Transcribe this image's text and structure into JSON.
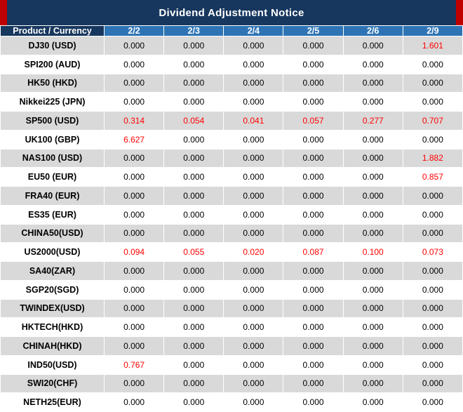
{
  "title": "Dividend Adjustment Notice",
  "colors": {
    "title_bg": "#17375E",
    "title_accent": "#C00000",
    "product_header_bg": "#17375E",
    "date_header_bg": "#2E74B5",
    "row_alt_bg": "#D9D9D9",
    "highlight_text": "#FF0000",
    "header_text": "#FFFFFF",
    "body_text": "#000000",
    "grid_line": "#FFFFFF"
  },
  "chart_data": {
    "type": "table",
    "title": "Dividend Adjustment Notice",
    "columns": [
      "Product / Currency",
      "2/2",
      "2/3",
      "2/4",
      "2/5",
      "2/6",
      "2/9"
    ],
    "highlight_meaning": "non-zero dividend adjustment shown in red",
    "rows": [
      {
        "product": "DJ30 (USD)",
        "values": [
          "0.000",
          "0.000",
          "0.000",
          "0.000",
          "0.000",
          "1.601"
        ],
        "highlighted": [
          5
        ]
      },
      {
        "product": "SPI200 (AUD)",
        "values": [
          "0.000",
          "0.000",
          "0.000",
          "0.000",
          "0.000",
          "0.000"
        ],
        "highlighted": []
      },
      {
        "product": "HK50 (HKD)",
        "values": [
          "0.000",
          "0.000",
          "0.000",
          "0.000",
          "0.000",
          "0.000"
        ],
        "highlighted": []
      },
      {
        "product": "Nikkei225 (JPN)",
        "values": [
          "0.000",
          "0.000",
          "0.000",
          "0.000",
          "0.000",
          "0.000"
        ],
        "highlighted": []
      },
      {
        "product": "SP500 (USD)",
        "values": [
          "0.314",
          "0.054",
          "0.041",
          "0.057",
          "0.277",
          "0.707"
        ],
        "highlighted": [
          0,
          1,
          2,
          3,
          4,
          5
        ]
      },
      {
        "product": "UK100 (GBP)",
        "values": [
          "6.627",
          "0.000",
          "0.000",
          "0.000",
          "0.000",
          "0.000"
        ],
        "highlighted": [
          0
        ]
      },
      {
        "product": "NAS100 (USD)",
        "values": [
          "0.000",
          "0.000",
          "0.000",
          "0.000",
          "0.000",
          "1.882"
        ],
        "highlighted": [
          5
        ]
      },
      {
        "product": "EU50 (EUR)",
        "values": [
          "0.000",
          "0.000",
          "0.000",
          "0.000",
          "0.000",
          "0.857"
        ],
        "highlighted": [
          5
        ]
      },
      {
        "product": "FRA40 (EUR)",
        "values": [
          "0.000",
          "0.000",
          "0.000",
          "0.000",
          "0.000",
          "0.000"
        ],
        "highlighted": []
      },
      {
        "product": "ES35 (EUR)",
        "values": [
          "0.000",
          "0.000",
          "0.000",
          "0.000",
          "0.000",
          "0.000"
        ],
        "highlighted": []
      },
      {
        "product": "CHINA50(USD)",
        "values": [
          "0.000",
          "0.000",
          "0.000",
          "0.000",
          "0.000",
          "0.000"
        ],
        "highlighted": []
      },
      {
        "product": "US2000(USD)",
        "values": [
          "0.094",
          "0.055",
          "0.020",
          "0.087",
          "0.100",
          "0.073"
        ],
        "highlighted": [
          0,
          1,
          2,
          3,
          4,
          5
        ]
      },
      {
        "product": "SA40(ZAR)",
        "values": [
          "0.000",
          "0.000",
          "0.000",
          "0.000",
          "0.000",
          "0.000"
        ],
        "highlighted": []
      },
      {
        "product": "SGP20(SGD)",
        "values": [
          "0.000",
          "0.000",
          "0.000",
          "0.000",
          "0.000",
          "0.000"
        ],
        "highlighted": []
      },
      {
        "product": "TWINDEX(USD)",
        "values": [
          "0.000",
          "0.000",
          "0.000",
          "0.000",
          "0.000",
          "0.000"
        ],
        "highlighted": []
      },
      {
        "product": "HKTECH(HKD)",
        "values": [
          "0.000",
          "0.000",
          "0.000",
          "0.000",
          "0.000",
          "0.000"
        ],
        "highlighted": []
      },
      {
        "product": "CHINAH(HKD)",
        "values": [
          "0.000",
          "0.000",
          "0.000",
          "0.000",
          "0.000",
          "0.000"
        ],
        "highlighted": []
      },
      {
        "product": "IND50(USD)",
        "values": [
          "0.767",
          "0.000",
          "0.000",
          "0.000",
          "0.000",
          "0.000"
        ],
        "highlighted": [
          0
        ]
      },
      {
        "product": "SWI20(CHF)",
        "values": [
          "0.000",
          "0.000",
          "0.000",
          "0.000",
          "0.000",
          "0.000"
        ],
        "highlighted": []
      },
      {
        "product": "NETH25(EUR)",
        "values": [
          "0.000",
          "0.000",
          "0.000",
          "0.000",
          "0.000",
          "0.000"
        ],
        "highlighted": []
      }
    ]
  }
}
